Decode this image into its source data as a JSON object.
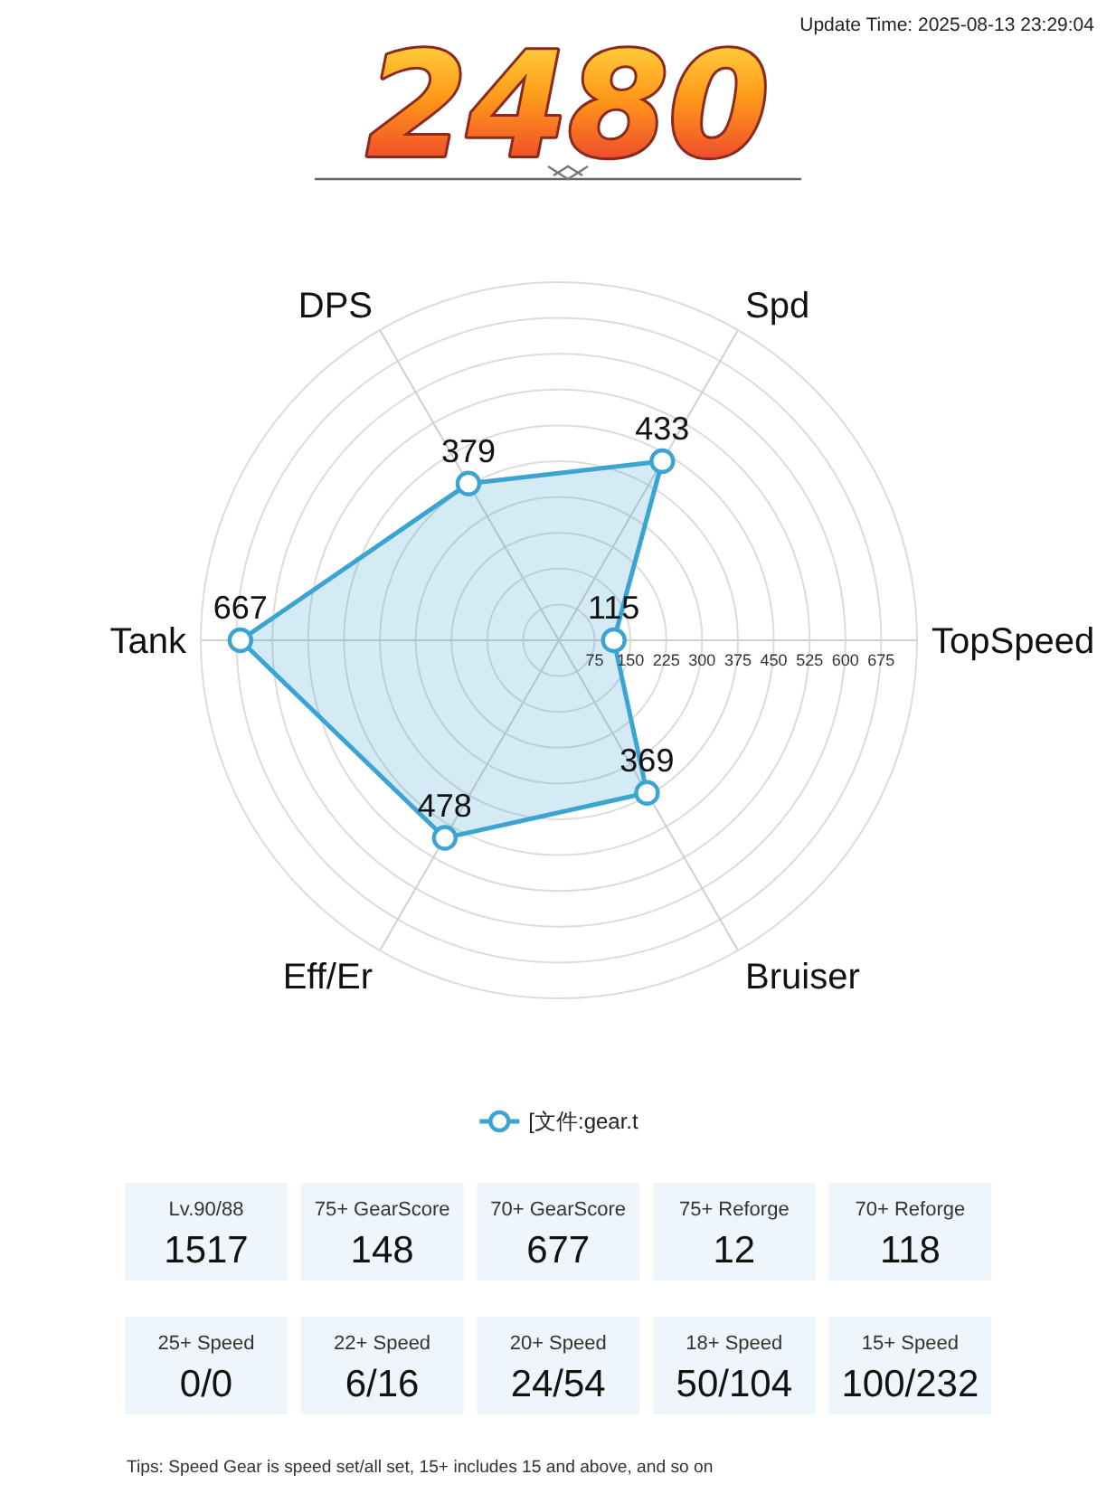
{
  "chart_data": [
    {
      "type": "radar",
      "title": "2480",
      "annotations": [
        "Update Time: 2025-08-13 23:29:04"
      ],
      "categories": [
        "Spd",
        "TopSpeed",
        "Bruiser",
        "Eff/Er",
        "Tank",
        "DPS"
      ],
      "series": [
        {
          "name": "[文件:gear.t",
          "color": "#3ca4d3",
          "values": [
            433,
            115,
            369,
            478,
            667,
            379
          ]
        }
      ],
      "ylim": [
        0,
        750
      ],
      "yticks": [
        75,
        150,
        225,
        300,
        375,
        450,
        525,
        600,
        675
      ],
      "grid": true,
      "legend": "bottom",
      "marker": "circle",
      "data_labels": true
    },
    {
      "type": "other",
      "categories": [
        "Lv.90/88",
        "75+ GearScore",
        "70+ GearScore",
        "75+ Reforge",
        "70+ Reforge",
        "25+ Speed",
        "22+ Speed",
        "20+ Speed",
        "18+ Speed",
        "15+ Speed"
      ],
      "value_labels": [
        "1517",
        "148",
        "677",
        "12",
        "118",
        "0/0",
        "6/16",
        "24/54",
        "50/104",
        "100/232"
      ],
      "annotations": [
        "Tips: Speed Gear is speed set/all set, 15+ includes 15 and above, and so on"
      ]
    }
  ]
}
